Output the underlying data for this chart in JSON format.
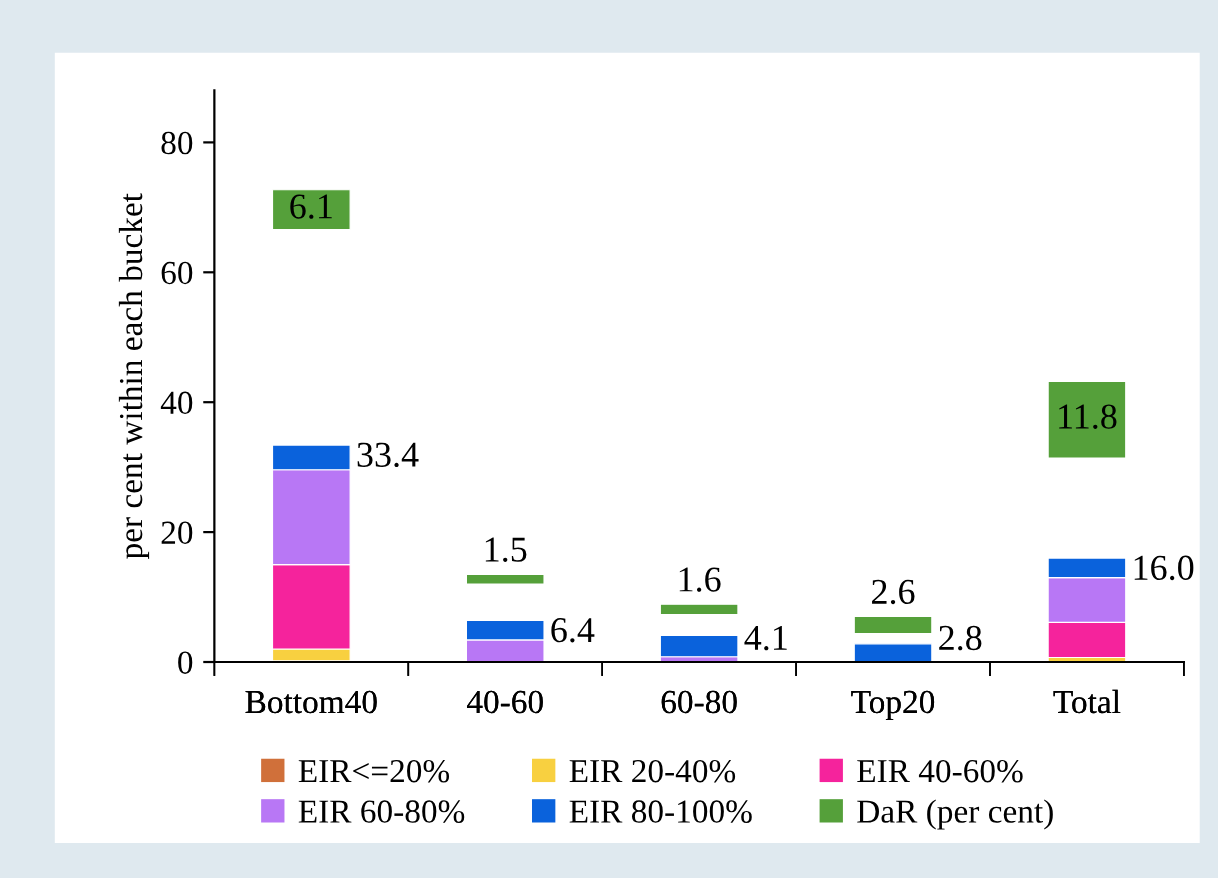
{
  "chart_data": [
    {
      "type": "bar",
      "stacked": true,
      "ylabel": "per cent within each bucket",
      "categories": [
        "Bottom40",
        "40-60",
        "60-80",
        "Top20",
        "Total"
      ],
      "series": [
        {
          "name": "EIR<=20%",
          "color": "#d0703a",
          "values": [
            0.2,
            0,
            0,
            0,
            null
          ]
        },
        {
          "name": "EIR 20-40%",
          "color": "#f8d040",
          "values": [
            1.8,
            0,
            0,
            0,
            0.7
          ]
        },
        {
          "name": "EIR 40-60%",
          "color": "#f5239c",
          "values": [
            13.0,
            null,
            0,
            0,
            5.4
          ]
        },
        {
          "name": "EIR 60-80%",
          "color": "#b877f5",
          "values": [
            14.6,
            3.4,
            0.8,
            null,
            6.9
          ]
        },
        {
          "name": "EIR 80-100%",
          "color": "#0a62dc",
          "values": [
            3.8,
            3.0,
            3.3,
            2.8,
            3.0
          ]
        }
      ],
      "totals": [
        "33.4",
        "6.4",
        "4.1",
        "2.8",
        "16.0"
      ],
      "ylim": [
        0,
        88
      ],
      "yticks": [
        0,
        20,
        40,
        60,
        80
      ],
      "legend": "bottom"
    },
    {
      "type": "bar",
      "categories": [
        "Bottom40",
        "40-60",
        "60-80",
        "Top20",
        "Total"
      ],
      "series": [
        {
          "name": "DaR (per cent)",
          "color": "#55a03a",
          "values": [
            6.1,
            1.5,
            1.6,
            2.6,
            11.8
          ],
          "base": [
            66.6,
            12.0,
            7.3,
            4.4,
            31.4
          ],
          "value_labels": [
            "6.1",
            "1.5",
            "1.6",
            "2.6",
            "11.8"
          ]
        }
      ],
      "ylim": [
        0,
        88
      ],
      "tick_labels": "x",
      "legend": "bottom"
    }
  ]
}
